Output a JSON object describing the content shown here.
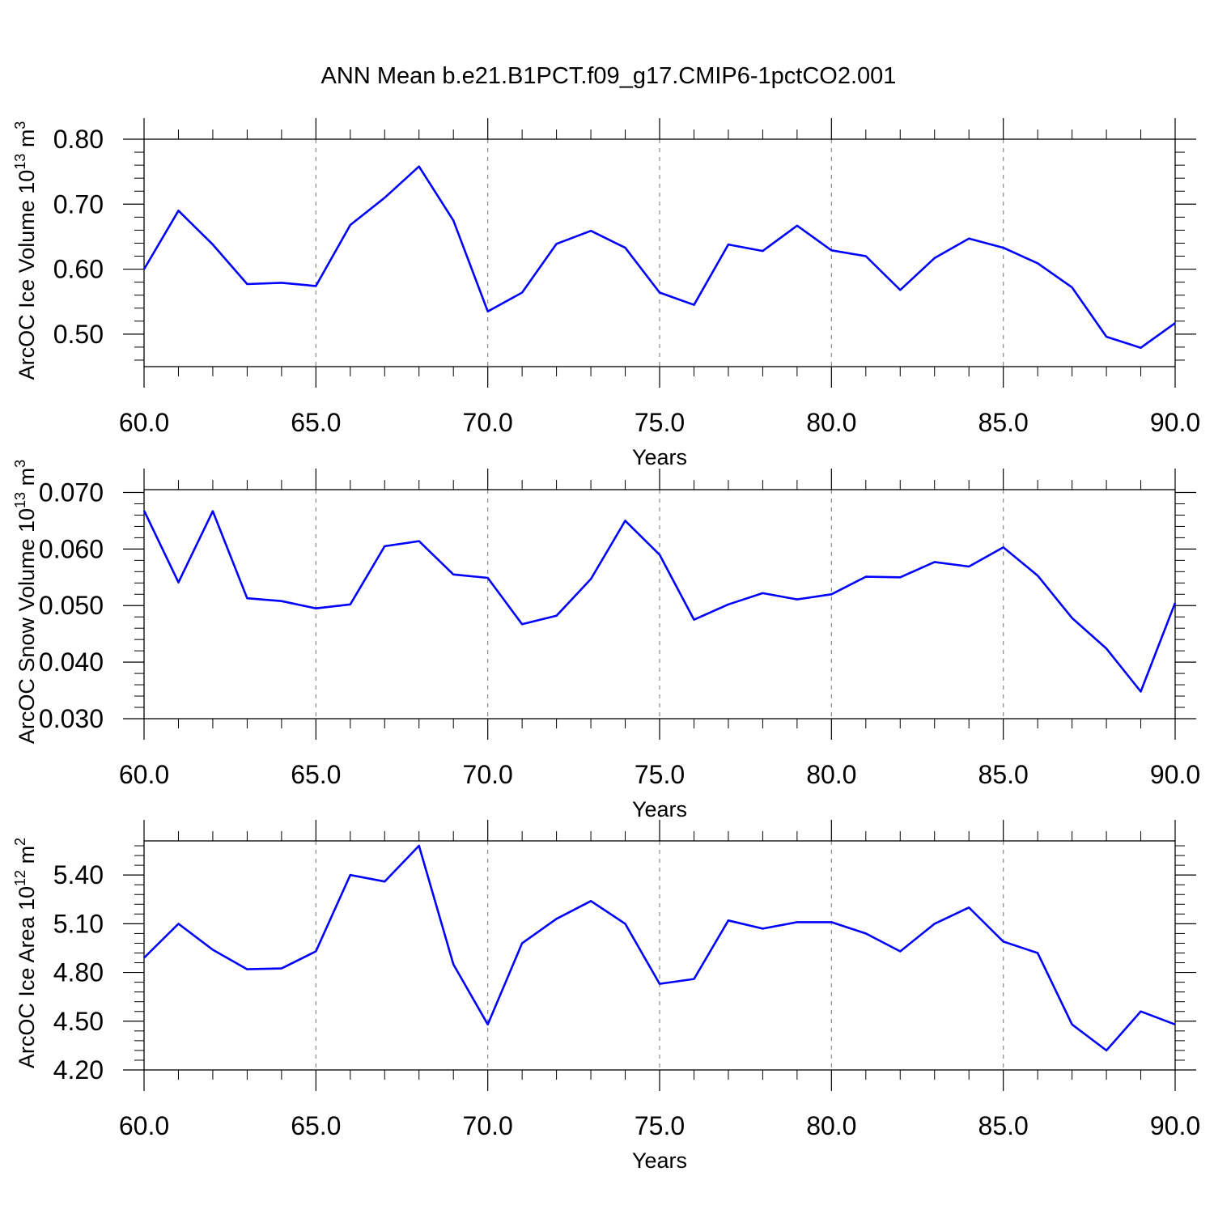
{
  "title": "ANN Mean b.e21.B1PCT.f09_g17.CMIP6-1pctCO2.001",
  "line_color": "#0000ff",
  "chart_data": [
    {
      "type": "line",
      "xlabel": "Years",
      "ylabel_main": "ArcOC Ice Volume 10",
      "ylabel_exp": "13",
      "ylabel_unit": " m",
      "ylabel_unit_exp": "3",
      "xlim": [
        60,
        90
      ],
      "ylim": [
        0.45,
        0.8
      ],
      "x_ticks": [
        60,
        65,
        70,
        75,
        80,
        85,
        90
      ],
      "x_tick_labels": [
        "60.0",
        "65.0",
        "70.0",
        "75.0",
        "80.0",
        "85.0",
        "90.0"
      ],
      "y_ticks": [
        0.5,
        0.6,
        0.7,
        0.8
      ],
      "y_tick_labels": [
        "0.50",
        "0.60",
        "0.70",
        "0.80"
      ],
      "x": [
        60,
        61,
        62,
        63,
        64,
        65,
        66,
        67,
        68,
        69,
        70,
        71,
        72,
        73,
        74,
        75,
        76,
        77,
        78,
        79,
        80,
        81,
        82,
        83,
        84,
        85,
        86,
        87,
        88,
        89,
        90
      ],
      "values": [
        0.6,
        0.69,
        0.638,
        0.577,
        0.579,
        0.574,
        0.668,
        0.71,
        0.758,
        0.675,
        0.535,
        0.564,
        0.639,
        0.659,
        0.633,
        0.564,
        0.545,
        0.638,
        0.628,
        0.667,
        0.629,
        0.62,
        0.568,
        0.617,
        0.647,
        0.633,
        0.609,
        0.572,
        0.496,
        0.479,
        0.517
      ]
    },
    {
      "type": "line",
      "xlabel": "Years",
      "ylabel_main": "ArcOC Snow Volume 10",
      "ylabel_exp": "13",
      "ylabel_unit": " m",
      "ylabel_unit_exp": "3",
      "xlim": [
        60,
        90
      ],
      "ylim": [
        0.03,
        0.0705
      ],
      "x_ticks": [
        60,
        65,
        70,
        75,
        80,
        85,
        90
      ],
      "x_tick_labels": [
        "60.0",
        "65.0",
        "70.0",
        "75.0",
        "80.0",
        "85.0",
        "90.0"
      ],
      "y_ticks": [
        0.03,
        0.04,
        0.05,
        0.06,
        0.07
      ],
      "y_tick_labels": [
        "0.030",
        "0.040",
        "0.050",
        "0.060",
        "0.070"
      ],
      "x": [
        60,
        61,
        62,
        63,
        64,
        65,
        66,
        67,
        68,
        69,
        70,
        71,
        72,
        73,
        74,
        75,
        76,
        77,
        78,
        79,
        80,
        81,
        82,
        83,
        84,
        85,
        86,
        87,
        88,
        89,
        90
      ],
      "values": [
        0.0668,
        0.0541,
        0.0667,
        0.0513,
        0.0508,
        0.0495,
        0.0502,
        0.0605,
        0.0614,
        0.0555,
        0.0549,
        0.0467,
        0.0482,
        0.0547,
        0.065,
        0.059,
        0.0475,
        0.0502,
        0.0522,
        0.0511,
        0.052,
        0.0551,
        0.055,
        0.0577,
        0.0569,
        0.0603,
        0.0553,
        0.0478,
        0.0424,
        0.0348,
        0.0505
      ]
    },
    {
      "type": "line",
      "xlabel": "Years",
      "ylabel_main": "ArcOC Ice Area 10",
      "ylabel_exp": "12",
      "ylabel_unit": " m",
      "ylabel_unit_exp": "2",
      "xlim": [
        60,
        90
      ],
      "ylim": [
        4.2,
        5.61
      ],
      "x_ticks": [
        60,
        65,
        70,
        75,
        80,
        85,
        90
      ],
      "x_tick_labels": [
        "60.0",
        "65.0",
        "70.0",
        "75.0",
        "80.0",
        "85.0",
        "90.0"
      ],
      "y_ticks": [
        4.2,
        4.5,
        4.8,
        5.1,
        5.4
      ],
      "y_tick_labels": [
        "4.20",
        "4.50",
        "4.80",
        "5.10",
        "5.40"
      ],
      "x": [
        60,
        61,
        62,
        63,
        64,
        65,
        66,
        67,
        68,
        69,
        70,
        71,
        72,
        73,
        74,
        75,
        76,
        77,
        78,
        79,
        80,
        81,
        82,
        83,
        84,
        85,
        86,
        87,
        88,
        89,
        90
      ],
      "values": [
        4.89,
        5.1,
        4.94,
        4.82,
        4.825,
        4.93,
        5.4,
        5.36,
        5.58,
        4.85,
        4.48,
        4.98,
        5.13,
        5.24,
        5.1,
        4.73,
        4.76,
        5.12,
        5.07,
        5.11,
        5.11,
        5.04,
        4.93,
        5.1,
        5.2,
        4.99,
        4.92,
        4.48,
        4.32,
        4.56,
        4.48
      ]
    }
  ]
}
